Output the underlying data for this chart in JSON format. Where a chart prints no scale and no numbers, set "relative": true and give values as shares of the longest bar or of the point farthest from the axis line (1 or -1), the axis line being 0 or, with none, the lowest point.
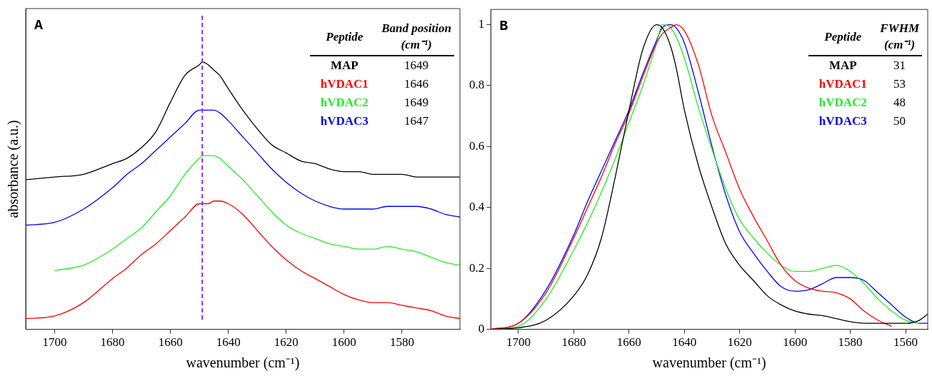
{
  "chart_data": [
    {
      "type": "line",
      "relative": true,
      "xlabel": "wavenumber (cm⁻¹)",
      "ylabel": "absorbance (a.u.)",
      "annotations": [
        "A",
        "Peptide",
        "Band position (cm⁻¹)",
        "1649",
        "1646",
        "1649",
        "1647"
      ],
      "x": [
        1710,
        1700,
        1690,
        1680,
        1675,
        1670,
        1665,
        1660,
        1655,
        1650,
        1649,
        1647,
        1645,
        1643,
        1640,
        1635,
        1630,
        1625,
        1620,
        1615,
        1610,
        1605,
        1600,
        1595,
        1590,
        1585,
        1580,
        1575,
        1570,
        1565,
        1560
      ],
      "series": [
        {
          "name": "MAP",
          "color": "#000000",
          "values": [
            0.56,
            0.57,
            0.58,
            0.62,
            0.64,
            0.68,
            0.74,
            0.85,
            0.95,
            0.99,
            1.0,
            0.99,
            0.97,
            0.95,
            0.9,
            0.82,
            0.75,
            0.69,
            0.66,
            0.63,
            0.62,
            0.6,
            0.59,
            0.59,
            0.58,
            0.58,
            0.58,
            0.57,
            0.57,
            0.57,
            0.57
          ]
        },
        {
          "name": "hVDAC1",
          "color": "#ff0000",
          "values": [
            0.04,
            0.05,
            0.1,
            0.19,
            0.23,
            0.28,
            0.32,
            0.37,
            0.42,
            0.47,
            0.47,
            0.47,
            0.48,
            0.48,
            0.47,
            0.43,
            0.37,
            0.31,
            0.26,
            0.22,
            0.19,
            0.16,
            0.13,
            0.11,
            0.1,
            0.1,
            0.09,
            0.08,
            0.07,
            0.05,
            0.04
          ]
        },
        {
          "name": "hVDAC2",
          "color": "#22ee22",
          "values": [
            null,
            0.22,
            0.24,
            0.3,
            0.34,
            0.38,
            0.44,
            0.5,
            0.58,
            0.64,
            0.65,
            0.65,
            0.65,
            0.64,
            0.61,
            0.56,
            0.5,
            0.44,
            0.39,
            0.36,
            0.34,
            0.32,
            0.31,
            0.3,
            0.3,
            0.31,
            0.3,
            0.29,
            0.27,
            0.25,
            0.24
          ]
        },
        {
          "name": "hVDAC3",
          "color": "#0000ff",
          "values": [
            0.39,
            0.4,
            0.45,
            0.53,
            0.58,
            0.62,
            0.67,
            0.72,
            0.77,
            0.82,
            0.82,
            0.82,
            0.82,
            0.81,
            0.78,
            0.72,
            0.66,
            0.6,
            0.55,
            0.51,
            0.48,
            0.46,
            0.45,
            0.45,
            0.45,
            0.46,
            0.46,
            0.46,
            0.45,
            0.43,
            0.42
          ]
        }
      ],
      "xlim": [
        1710,
        1560
      ],
      "xticks": [
        1700,
        1680,
        1660,
        1640,
        1620,
        1600,
        1580
      ],
      "ref_lines": [
        {
          "axis": "x",
          "value": 1649,
          "color": "#8a2be2",
          "line_style": "dashed"
        }
      ],
      "legend": "top right",
      "marker": "none",
      "grid": false
    },
    {
      "type": "line",
      "xlabel": "wavenumber (cm⁻¹)",
      "annotations": [
        "B",
        "Peptide",
        "FWHM (cm⁻¹)",
        "31",
        "53",
        "48",
        "50"
      ],
      "x": [
        1710,
        1700,
        1690,
        1680,
        1675,
        1670,
        1665,
        1660,
        1655,
        1650,
        1648,
        1645,
        1643,
        1640,
        1635,
        1630,
        1625,
        1620,
        1615,
        1610,
        1605,
        1600,
        1595,
        1590,
        1585,
        1580,
        1575,
        1570,
        1565,
        1560,
        1555,
        1552
      ],
      "series": [
        {
          "name": "MAP",
          "color": "#000000",
          "values": [
            0,
            0.005,
            0.03,
            0.11,
            0.18,
            0.3,
            0.5,
            0.72,
            0.92,
            1.0,
            0.99,
            0.93,
            0.86,
            0.72,
            0.54,
            0.4,
            0.28,
            0.21,
            0.16,
            0.11,
            0.08,
            0.06,
            0.05,
            0.045,
            0.035,
            0.025,
            0.02,
            0.02,
            0.02,
            0.02,
            0.03,
            0.05
          ]
        },
        {
          "name": "hVDAC1",
          "color": "#ff0000",
          "values": [
            0,
            0.02,
            0.12,
            0.3,
            0.4,
            0.5,
            0.61,
            0.71,
            0.83,
            0.94,
            0.97,
            0.99,
            1.0,
            0.98,
            0.87,
            0.7,
            0.58,
            0.46,
            0.37,
            0.29,
            0.21,
            0.16,
            0.135,
            0.125,
            0.12,
            0.1,
            0.06,
            0.03,
            0.01,
            null,
            null,
            null
          ]
        },
        {
          "name": "hVDAC2",
          "color": "#22ee22",
          "values": [
            0,
            0.01,
            0.1,
            0.26,
            0.35,
            0.45,
            0.56,
            0.68,
            0.8,
            0.94,
            1.0,
            0.99,
            0.96,
            0.89,
            0.73,
            0.59,
            0.46,
            0.36,
            0.3,
            0.25,
            0.21,
            0.19,
            0.19,
            0.2,
            0.21,
            0.19,
            0.15,
            0.1,
            0.06,
            0.03,
            0.02,
            null
          ]
        },
        {
          "name": "hVDAC3",
          "color": "#0000ff",
          "values": [
            0,
            0.02,
            0.13,
            0.31,
            0.42,
            0.52,
            0.62,
            0.72,
            0.84,
            0.95,
            0.99,
            1.0,
            0.99,
            0.94,
            0.78,
            0.6,
            0.44,
            0.32,
            0.25,
            0.19,
            0.14,
            0.125,
            0.13,
            0.15,
            0.17,
            0.17,
            0.16,
            0.12,
            0.08,
            0.04,
            0.02,
            0.02
          ]
        }
      ],
      "xlim": [
        1710,
        1552
      ],
      "xticks": [
        1700,
        1680,
        1660,
        1640,
        1620,
        1600,
        1580,
        1560
      ],
      "ylim": [
        0,
        1.05
      ],
      "yticks": [
        0,
        0.2,
        0.4,
        0.6,
        0.8,
        1
      ],
      "legend": "top right",
      "marker": "none",
      "grid": false
    }
  ]
}
